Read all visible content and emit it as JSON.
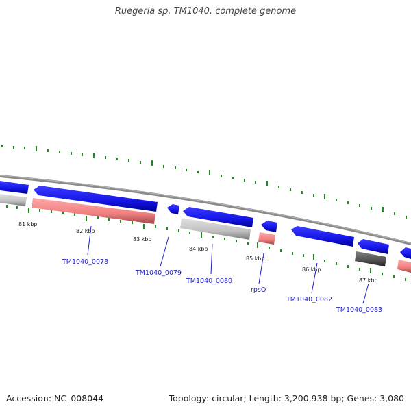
{
  "title": "Ruegeria sp. TM1040, complete genome",
  "footer": {
    "accession": "Accession: NC_008044",
    "summary": "Topology: circular; Length: 3,200,938 bp; Genes: 3,080"
  },
  "colors": {
    "forward_gene": "#1414e6",
    "cds_pseudo": "#bebebe",
    "cds_dark": "#505050",
    "rrna_trna": "#f08080",
    "backbone": "#909090",
    "tick": "#1e8c1e",
    "label": "#1e1ec8"
  },
  "scale_labels": [
    "81 kbp",
    "82 kbp",
    "83 kbp",
    "84 kbp",
    "85 kbp",
    "86 kbp",
    "87 kbp"
  ],
  "gene_labels": [
    "TM1040_0078",
    "TM1040_0079",
    "TM1040_0080",
    "rpsO",
    "TM1040_0082",
    "TM1040_0083"
  ]
}
